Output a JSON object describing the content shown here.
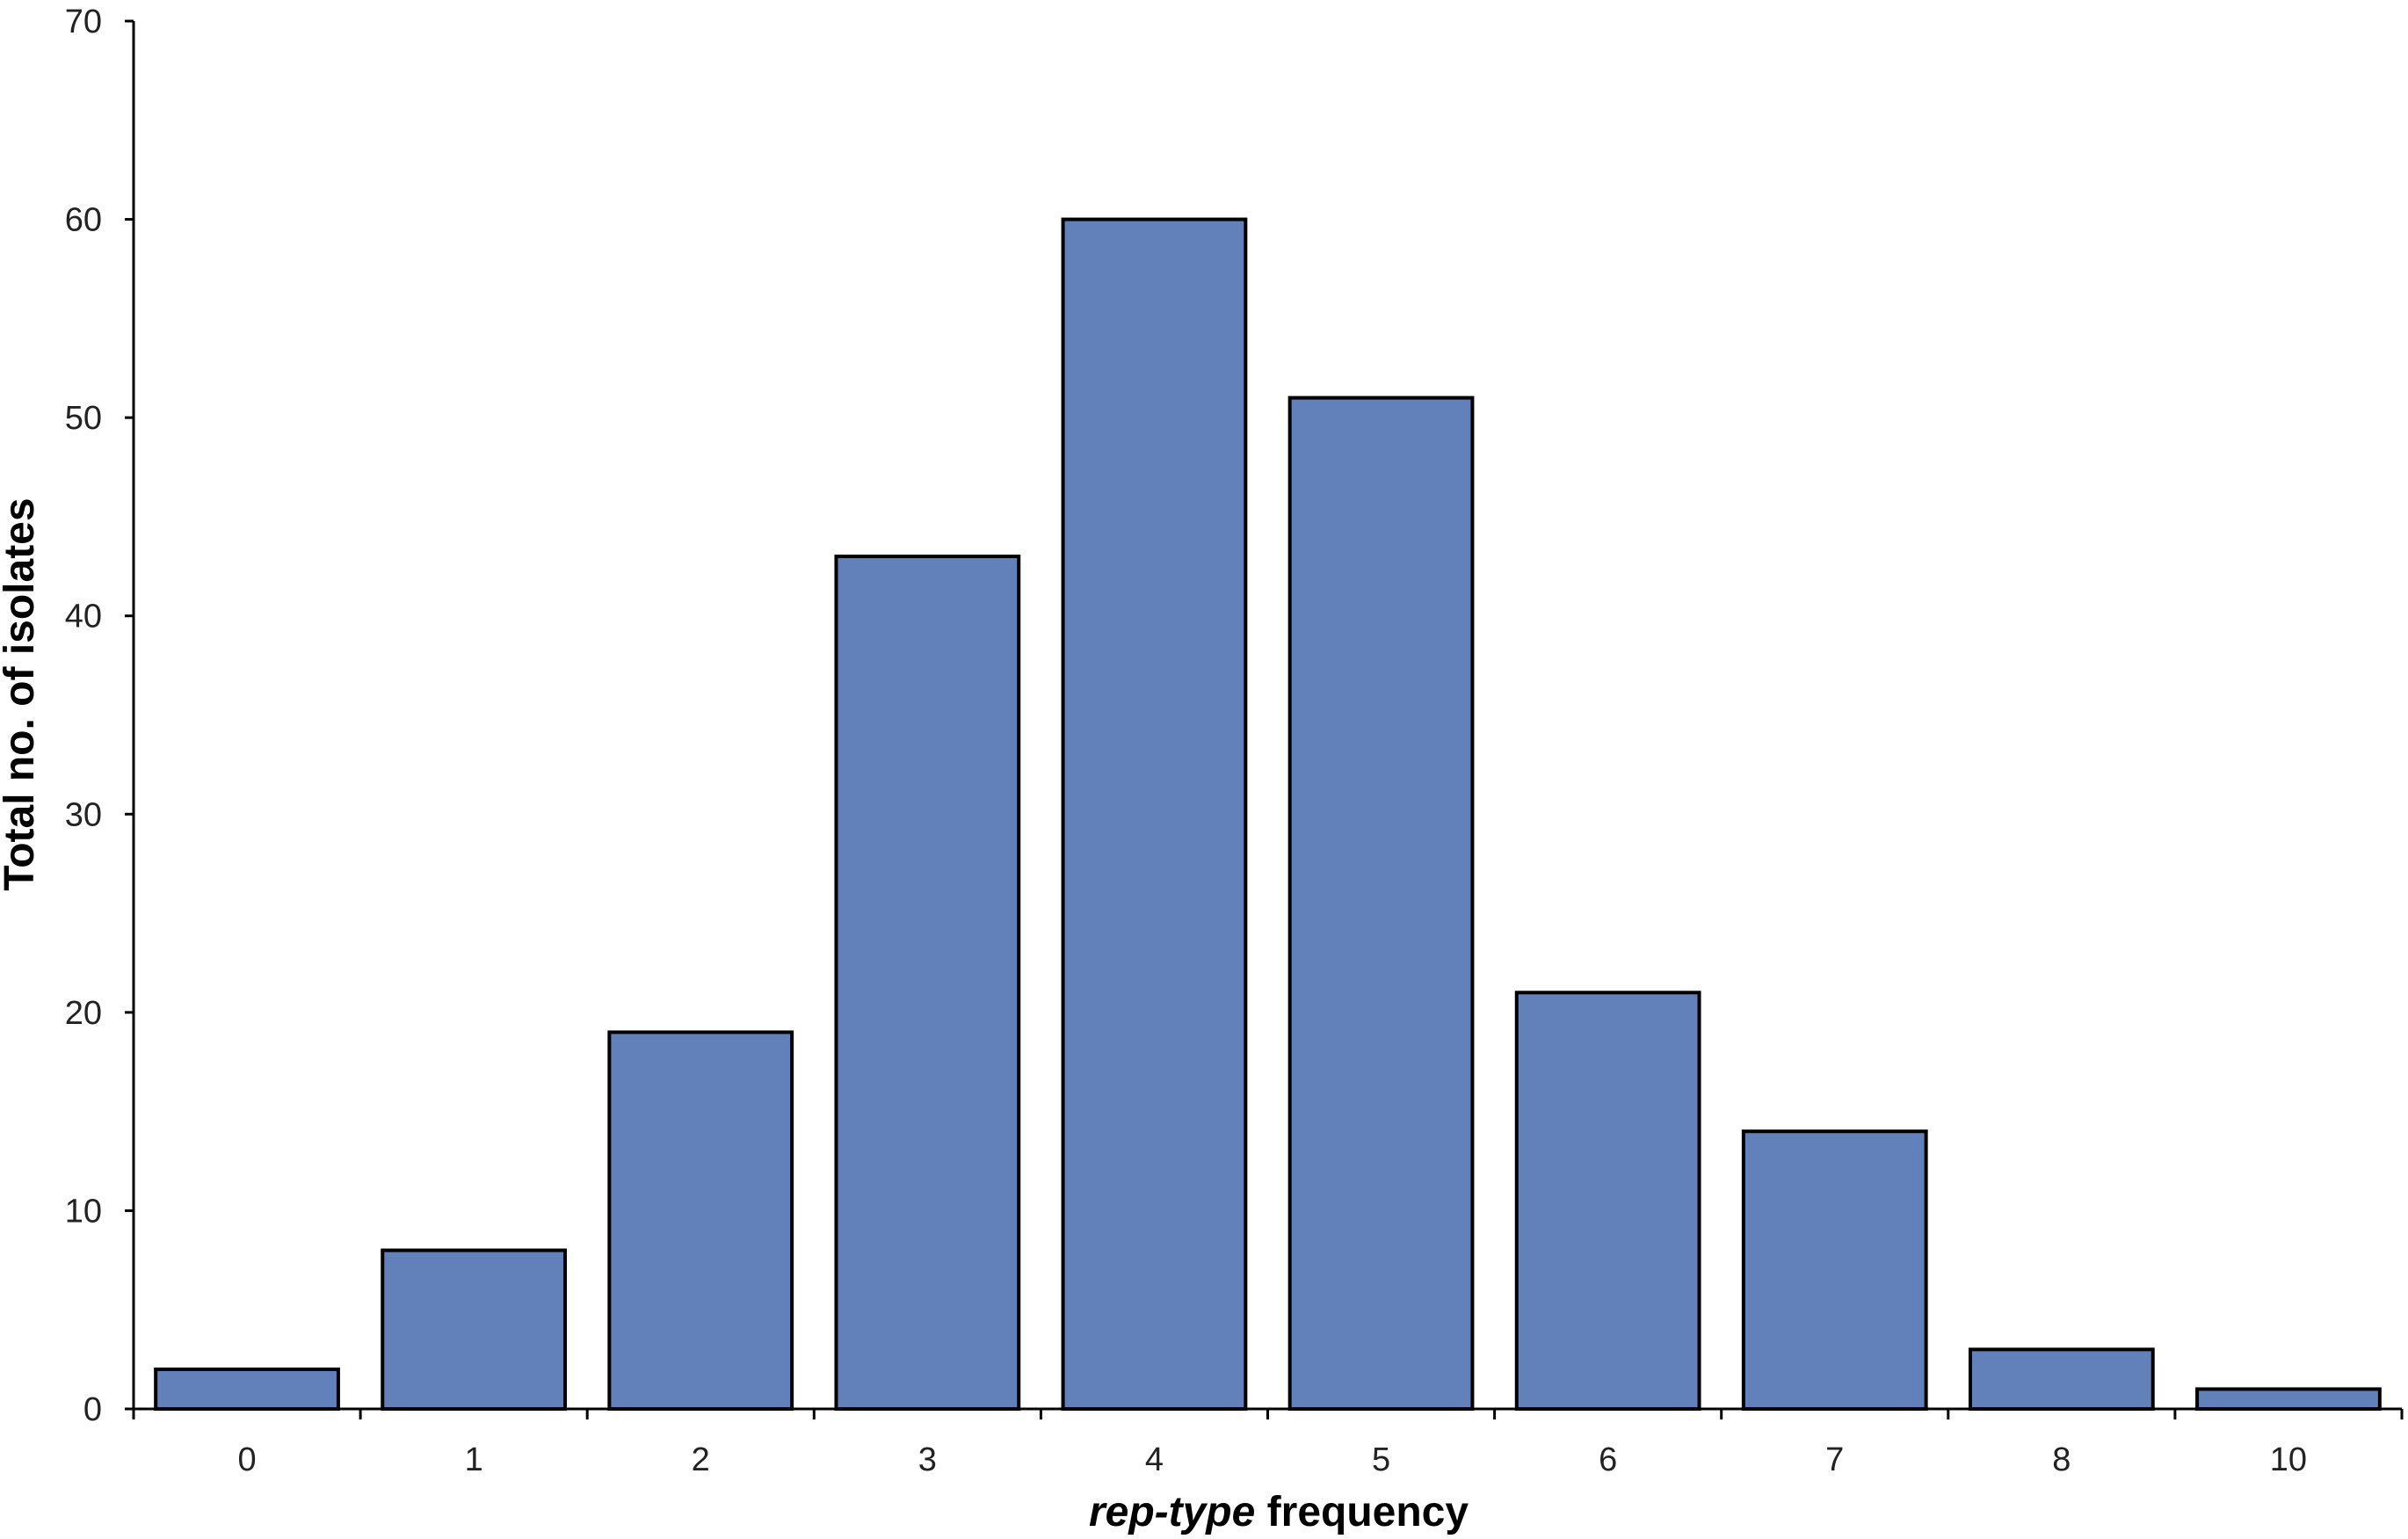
{
  "chart_data": {
    "type": "bar",
    "categories": [
      "0",
      "1",
      "2",
      "3",
      "4",
      "5",
      "6",
      "7",
      "8",
      "10"
    ],
    "values": [
      2,
      8,
      19,
      43,
      60,
      51,
      21,
      14,
      3,
      1
    ],
    "title": "",
    "xlabel_italic": "rep-type",
    "xlabel_rest": " frequency",
    "ylabel": "Total no. of isolates",
    "ylim": [
      0,
      70
    ],
    "yticks": [
      "0",
      "10",
      "20",
      "30",
      "40",
      "50",
      "60",
      "70"
    ],
    "grid": false,
    "legend": "none",
    "colors": {
      "bar": "#6280b9",
      "edge": "#000000"
    }
  }
}
